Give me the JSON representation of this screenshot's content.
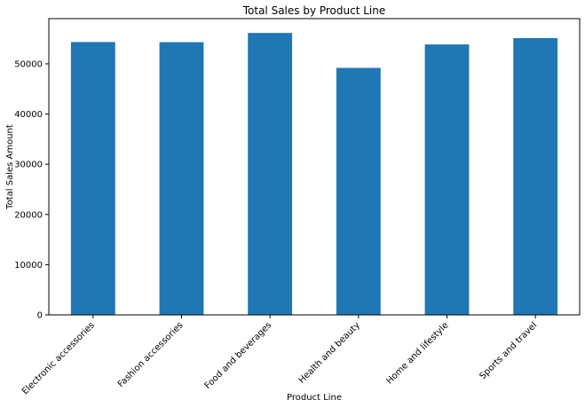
{
  "chart_data": {
    "type": "bar",
    "title": "Total Sales by Product Line",
    "xlabel": "Product Line",
    "ylabel": "Total Sales Amount",
    "categories": [
      "Electronic accessories",
      "Fashion accessories",
      "Food and beverages",
      "Health and beauty",
      "Home and lifestyle",
      "Sports and travel"
    ],
    "values": [
      54337.53,
      54305.9,
      56144.84,
      49193.74,
      53861.91,
      55122.83
    ],
    "ylim": [
      0,
      59000
    ],
    "yticks": [
      0,
      10000,
      20000,
      30000,
      40000,
      50000
    ],
    "grid": false,
    "bar_color": "#1f77b4"
  }
}
